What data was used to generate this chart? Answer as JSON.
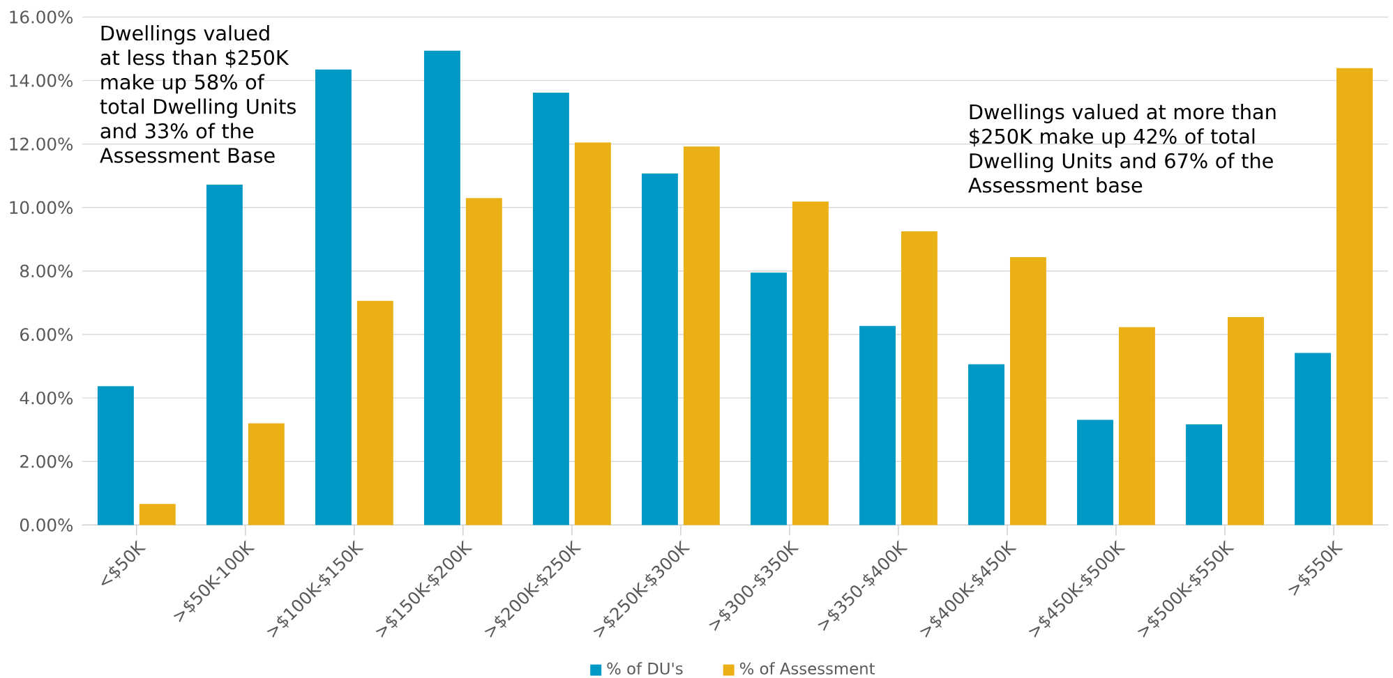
{
  "chart_data": {
    "type": "bar",
    "categories": [
      "<$50K",
      ">$50K-100K",
      ">$100K-$150K",
      ">$150K-$200K",
      ">$200K-$250K",
      ">$250K-$300K",
      ">$300-$350K",
      ">$350-$400K",
      ">$400K-$450K",
      ">$450K-$500K",
      ">$500K-$550K",
      ">$550K"
    ],
    "series": [
      {
        "name": "% of DU's",
        "color": "#0099c6",
        "values": [
          4.37,
          10.72,
          14.35,
          14.94,
          13.62,
          11.07,
          7.95,
          6.27,
          5.06,
          3.31,
          3.17,
          5.42
        ]
      },
      {
        "name": "% of Assessment",
        "color": "#ebb016",
        "values": [
          0.66,
          3.2,
          7.06,
          10.3,
          12.05,
          11.92,
          10.19,
          9.25,
          8.44,
          6.23,
          6.55,
          14.39
        ]
      }
    ],
    "ylim": [
      0,
      16
    ],
    "yticks": [
      {
        "value": 0,
        "label": "0.00%"
      },
      {
        "value": 2,
        "label": "2.00%"
      },
      {
        "value": 4,
        "label": "4.00%"
      },
      {
        "value": 6,
        "label": "6.00%"
      },
      {
        "value": 8,
        "label": "8.00%"
      },
      {
        "value": 10,
        "label": "10.00%"
      },
      {
        "value": 12,
        "label": "12.00%"
      },
      {
        "value": 14,
        "label": "14.00%"
      },
      {
        "value": 16,
        "label": "16.00%"
      }
    ],
    "grid": "y",
    "legend": "bottom",
    "annotations": [
      "Dwellings valued at less than $250K make up 58% of total Dwelling Units and 33% of the Assessment Base",
      "Dwellings valued at more than $250K make up 42% of total Dwelling Units and 67% of the Assessment base"
    ]
  }
}
